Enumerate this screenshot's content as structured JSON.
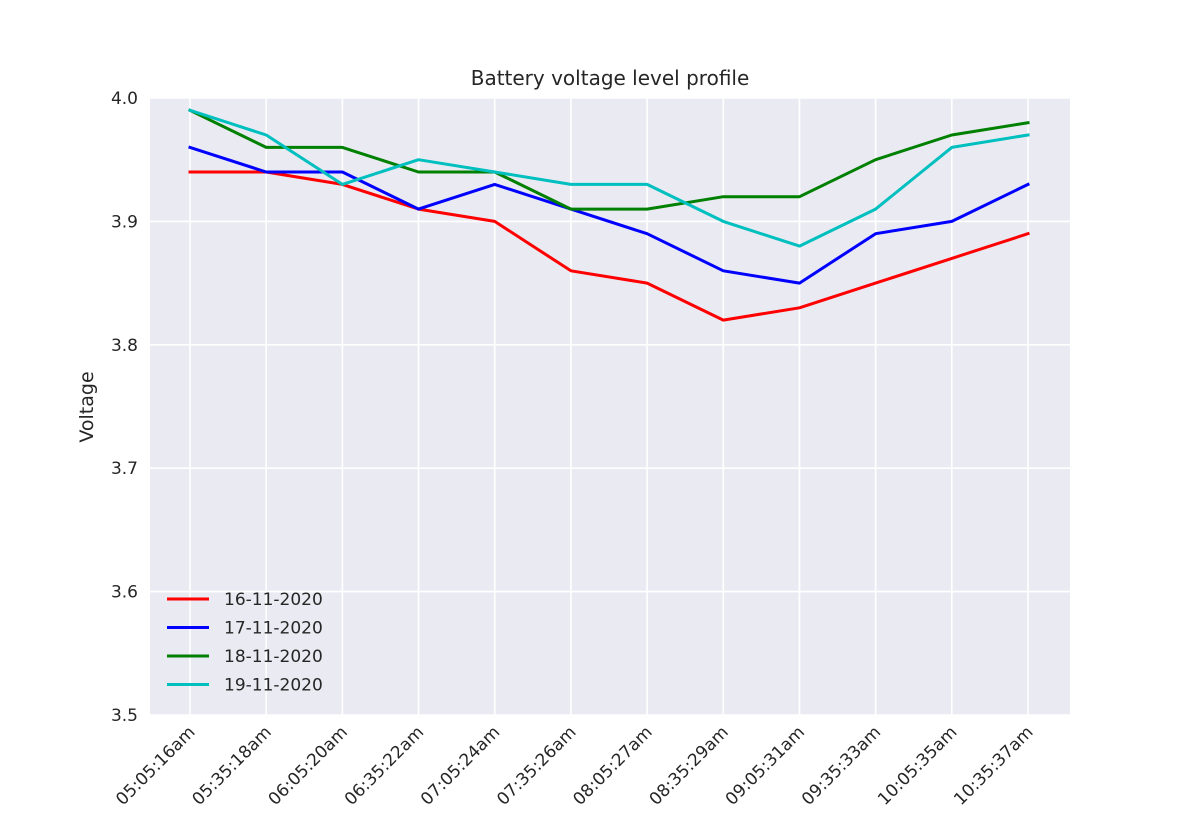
{
  "chart_data": {
    "type": "line",
    "title": "Battery voltage level profile",
    "xlabel": "",
    "ylabel": "Voltage",
    "categories": [
      "05:05:16am",
      "05:35:18am",
      "06:05:20am",
      "06:35:22am",
      "07:05:24am",
      "07:35:26am",
      "08:05:27am",
      "08:35:29am",
      "09:05:31am",
      "09:35:33am",
      "10:05:35am",
      "10:35:37am"
    ],
    "ylim": [
      3.5,
      4.0
    ],
    "yticks": [
      "3.5",
      "3.6",
      "3.7",
      "3.8",
      "3.9",
      "4.0"
    ],
    "grid": true,
    "legend_position": "lower-left",
    "series": [
      {
        "name": "16-11-2020",
        "color": "#ff0000",
        "values": [
          3.94,
          3.94,
          3.93,
          3.91,
          3.9,
          3.86,
          3.85,
          3.82,
          3.83,
          3.85,
          3.87,
          3.89
        ]
      },
      {
        "name": "17-11-2020",
        "color": "#0000ff",
        "values": [
          3.96,
          3.94,
          3.94,
          3.91,
          3.93,
          3.91,
          3.89,
          3.86,
          3.85,
          3.89,
          3.9,
          3.93
        ]
      },
      {
        "name": "18-11-2020",
        "color": "#008000",
        "values": [
          3.99,
          3.96,
          3.96,
          3.94,
          3.94,
          3.91,
          3.91,
          3.92,
          3.92,
          3.95,
          3.97,
          3.98
        ]
      },
      {
        "name": "19-11-2020",
        "color": "#00bfbf",
        "values": [
          3.99,
          3.97,
          3.93,
          3.95,
          3.94,
          3.93,
          3.93,
          3.9,
          3.88,
          3.91,
          3.96,
          3.97
        ]
      }
    ]
  }
}
